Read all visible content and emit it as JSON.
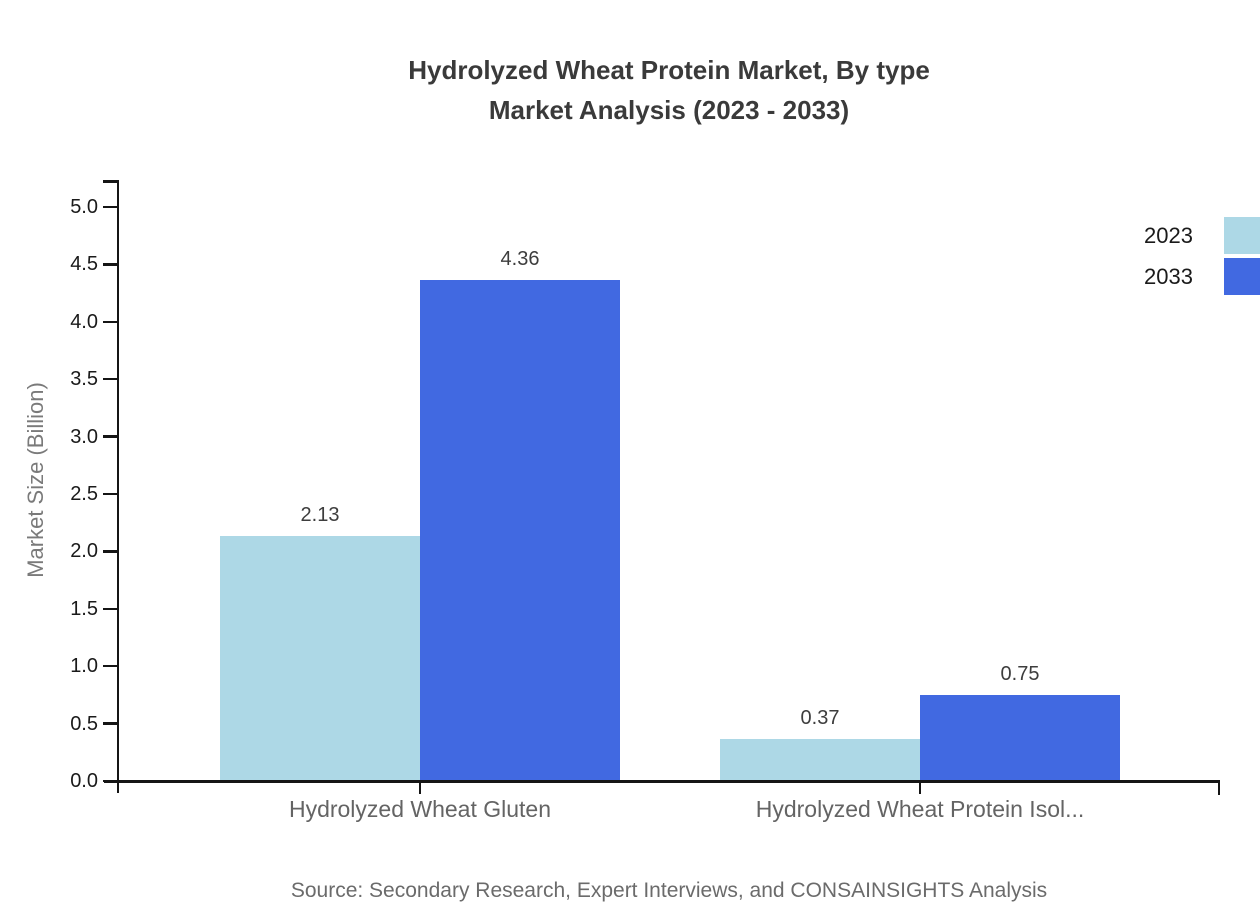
{
  "page": {
    "title_line1": "Hydrolyzed Wheat Protein Market, By type",
    "title_line2": "Market Analysis (2023 - 2033)",
    "source": "Source: Secondary Research, Expert Interviews, and CONSAINSIGHTS Analysis"
  },
  "chart_data": {
    "type": "bar",
    "title": "Hydrolyzed Wheat Protein Market, By type Market Analysis (2023 - 2033)",
    "categories": [
      "Hydrolyzed Wheat Gluten",
      "Hydrolyzed Wheat Protein Isol..."
    ],
    "series": [
      {
        "name": "2023",
        "color": "#ADD8E6",
        "values": [
          2.13,
          0.37
        ]
      },
      {
        "name": "2033",
        "color": "#4169E1",
        "values": [
          4.36,
          0.75
        ]
      }
    ],
    "xlabel": "",
    "ylabel": "Market Size (Billion)",
    "ylim": [
      0,
      5.0
    ],
    "yticks": [
      0.0,
      0.5,
      1.0,
      1.5,
      2.0,
      2.5,
      3.0,
      3.5,
      4.0,
      4.5,
      5.0
    ],
    "value_label_decimals": 2,
    "grid": false,
    "legend_position": "top-right",
    "bar_value_labels": true
  }
}
